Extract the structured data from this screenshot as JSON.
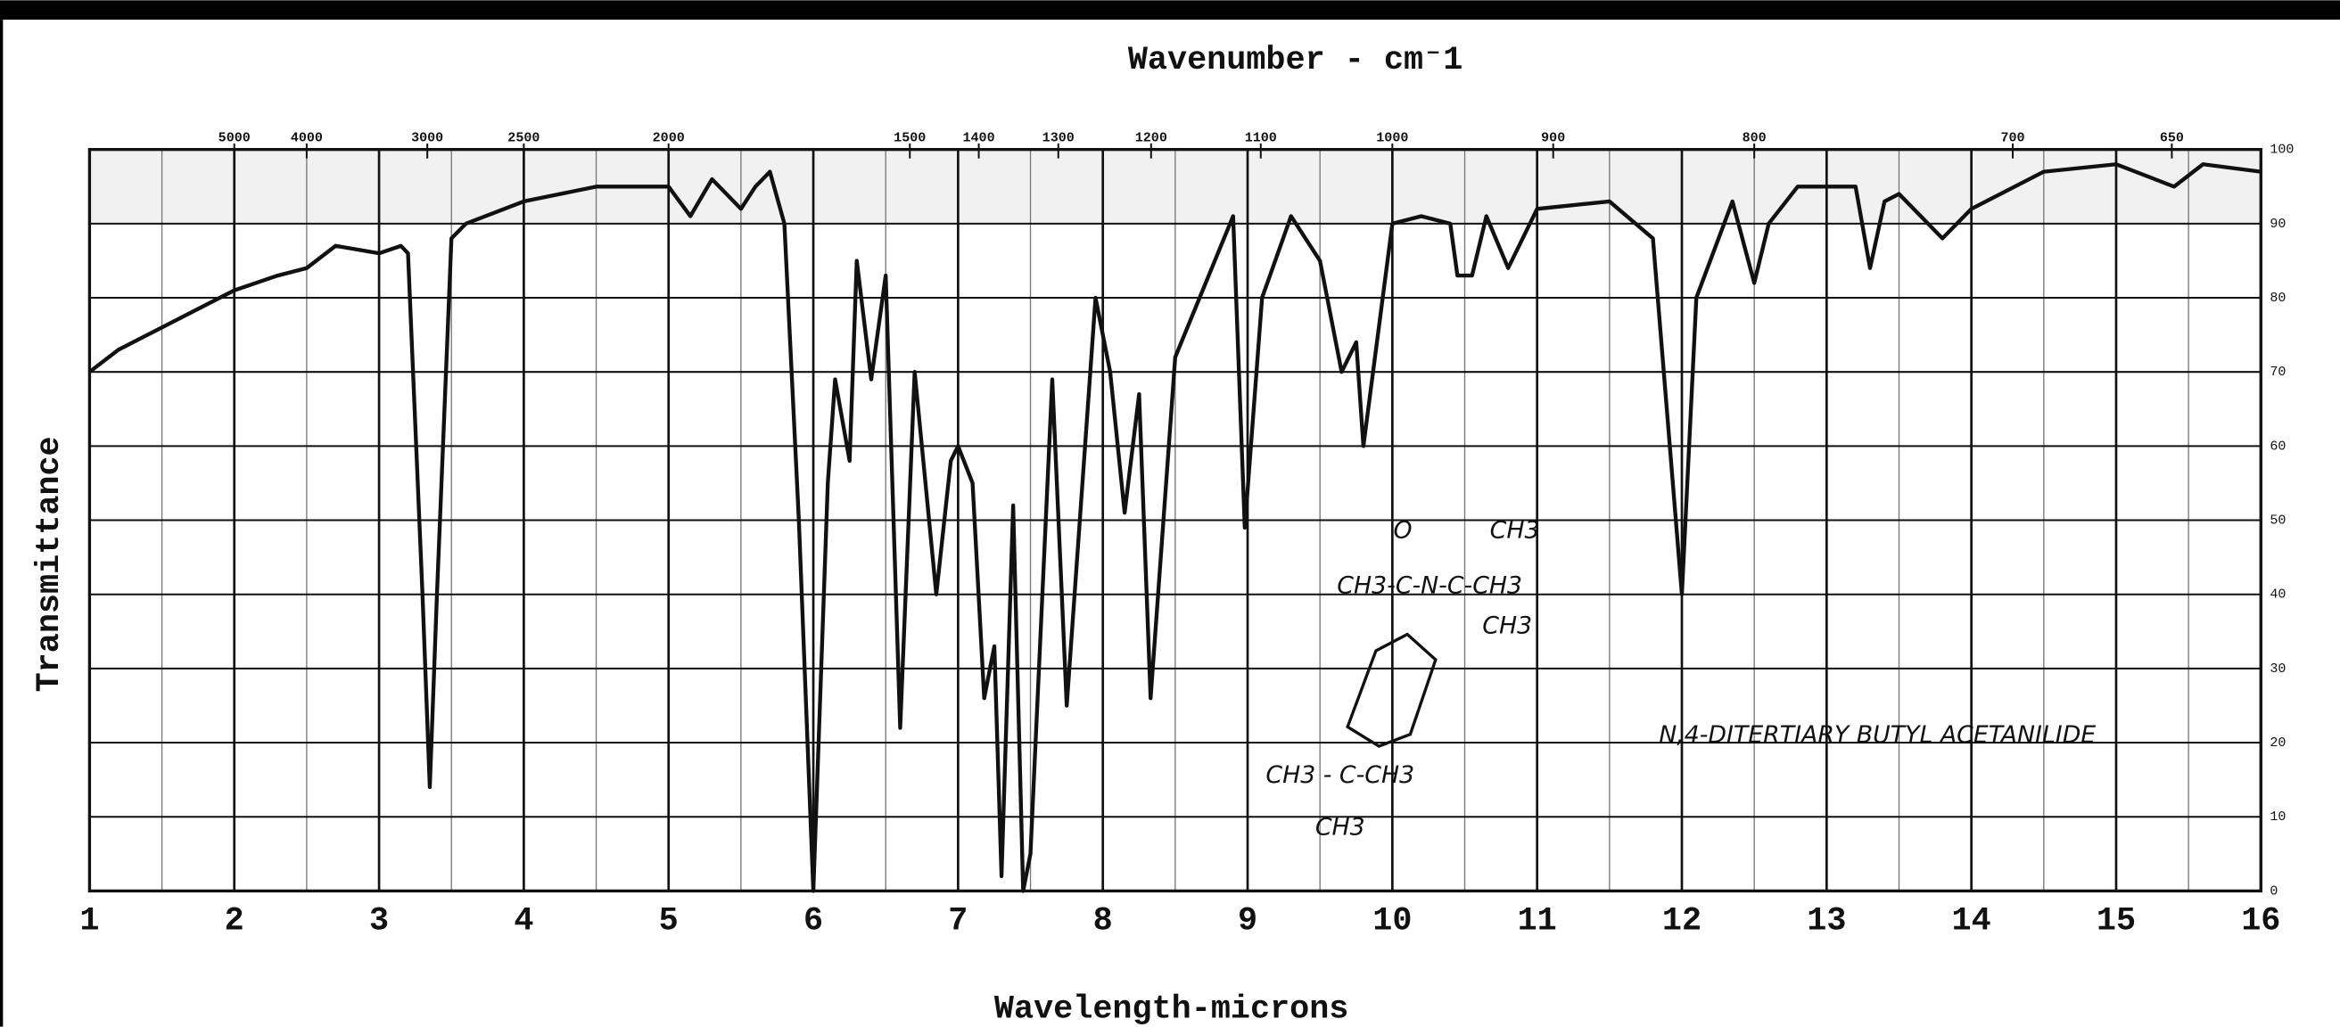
{
  "chart_data": {
    "type": "line",
    "title": "Wavenumber - cm⁻1",
    "xlabel": "Wavelength-microns",
    "ylabel": "Transmittance",
    "annotations": [
      "O",
      "CH3",
      "CH3-C-N-C-CH3",
      "CH3",
      "CH3 - C-CH3",
      "CH3",
      "N,4-DITERTIARY BUTYL ACETANILIDE"
    ],
    "xlim": [
      1,
      16
    ],
    "xticks": [
      1,
      2,
      3,
      4,
      5,
      6,
      7,
      8,
      9,
      10,
      11,
      12,
      13,
      14,
      15,
      16
    ],
    "ylim": [
      0,
      100
    ],
    "yticks": [
      0,
      10,
      20,
      30,
      40,
      50,
      60,
      70,
      80,
      90,
      100
    ],
    "wavenumber_ticks": [
      5000,
      4000,
      3000,
      2500,
      2000,
      1500,
      1400,
      1300,
      1200,
      1100,
      1000,
      900,
      800,
      700,
      650
    ],
    "grid": true,
    "color": "#111111",
    "x": [
      1.0,
      1.2,
      1.5,
      2.0,
      2.3,
      2.5,
      2.7,
      3.0,
      3.15,
      3.2,
      3.3,
      3.35,
      3.4,
      3.5,
      3.6,
      4.0,
      4.5,
      5.0,
      5.15,
      5.3,
      5.5,
      5.6,
      5.7,
      5.8,
      5.9,
      6.0,
      6.1,
      6.15,
      6.25,
      6.3,
      6.4,
      6.5,
      6.6,
      6.7,
      6.85,
      6.95,
      7.0,
      7.1,
      7.18,
      7.25,
      7.3,
      7.38,
      7.45,
      7.5,
      7.65,
      7.75,
      7.95,
      8.05,
      8.15,
      8.25,
      8.33,
      8.5,
      8.9,
      8.98,
      9.1,
      9.3,
      9.5,
      9.65,
      9.75,
      9.8,
      10.0,
      10.2,
      10.4,
      10.45,
      10.55,
      10.65,
      10.8,
      11.0,
      11.5,
      11.8,
      12.0,
      12.1,
      12.35,
      12.5,
      12.6,
      12.8,
      13.2,
      13.3,
      13.4,
      13.5,
      13.8,
      14.0,
      14.5,
      15.0,
      15.4,
      15.6,
      16.0
    ],
    "values": [
      70,
      73,
      76,
      81,
      83,
      84,
      87,
      86,
      87,
      86,
      40,
      14,
      40,
      88,
      90,
      93,
      95,
      95,
      91,
      96,
      92,
      95,
      97,
      90,
      50,
      0,
      55,
      69,
      58,
      85,
      69,
      83,
      22,
      70,
      40,
      58,
      60,
      55,
      26,
      33,
      2,
      52,
      0,
      5,
      69,
      25,
      80,
      70,
      51,
      67,
      26,
      72,
      91,
      49,
      80,
      91,
      85,
      70,
      74,
      60,
      90,
      91,
      90,
      83,
      83,
      91,
      84,
      92,
      93,
      88,
      40,
      80,
      93,
      82,
      90,
      95,
      95,
      84,
      93,
      94,
      88,
      92,
      97,
      98,
      95,
      98,
      97
    ]
  }
}
